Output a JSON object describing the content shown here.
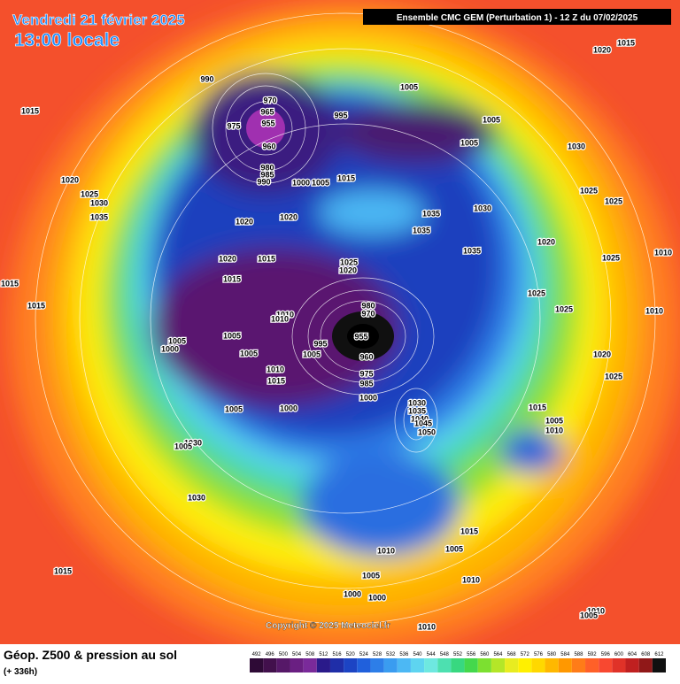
{
  "header": {
    "date": "Vendredi 21 février 2025",
    "local_time": "13:00 locale",
    "model": "Ensemble CMC GEM  (Perturbation 1)  -  12 Z du 07/02/2025"
  },
  "footer": {
    "field": "Géop. Z500 & pression au sol",
    "lead": "(+ 336h)",
    "copyright": "Copyright © 2025 Meteociel.fr"
  },
  "colorbar": {
    "ticks": [
      492,
      496,
      500,
      504,
      508,
      512,
      516,
      520,
      524,
      528,
      532,
      536,
      540,
      544,
      548,
      552,
      556,
      560,
      564,
      568,
      572,
      576,
      580,
      584,
      588,
      592,
      596,
      600,
      604,
      608,
      612
    ],
    "colors": [
      "#2e0a36",
      "#42104c",
      "#561868",
      "#6a1f82",
      "#7a2a9a",
      "#2a1a8a",
      "#1f2ea8",
      "#1c44c4",
      "#2060dc",
      "#2d7ee8",
      "#3a9cf0",
      "#4cb8f4",
      "#5ed4f0",
      "#6ee8e0",
      "#4de0b0",
      "#38d880",
      "#44d84c",
      "#7ce030",
      "#b4e628",
      "#e8ec20",
      "#fff000",
      "#ffd800",
      "#ffb800",
      "#ff9800",
      "#ff7c18",
      "#ff6028",
      "#f84830",
      "#e03228",
      "#c02020",
      "#901818",
      "#101010"
    ]
  },
  "isobar_labels": [
    "990",
    "1015",
    "970",
    "965",
    "975",
    "955",
    "960",
    "995",
    "1005",
    "1005",
    "1005",
    "1015",
    "1020",
    "1030",
    "1025",
    "1025",
    "1020",
    "1025",
    "1030",
    "1035",
    "980",
    "985",
    "990",
    "1000",
    "1005",
    "1015",
    "1020",
    "1020",
    "1035",
    "1030",
    "1035",
    "1035",
    "1020",
    "1025",
    "1010",
    "1015",
    "1020",
    "1015",
    "1015",
    "1025",
    "1020",
    "1015",
    "1025",
    "1025",
    "1010",
    "1010",
    "1010",
    "980",
    "970",
    "1005",
    "1000",
    "1005",
    "955",
    "995",
    "1005",
    "1005",
    "960",
    "1010",
    "1015",
    "975",
    "985",
    "1020",
    "1025",
    "1000",
    "1005",
    "1000",
    "1030",
    "1035",
    "1040",
    "1045",
    "1050",
    "1015",
    "1005",
    "1010",
    "1030",
    "1005",
    "1030",
    "1015",
    "1005",
    "1010",
    "1010",
    "1015",
    "1005",
    "1000",
    "1000",
    "1010",
    "1005",
    "1010"
  ]
}
